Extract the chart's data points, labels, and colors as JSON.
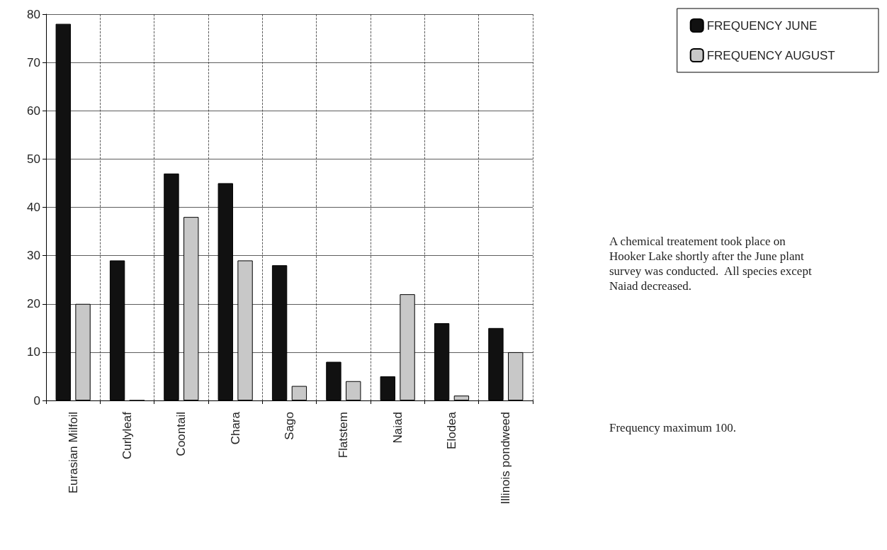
{
  "chart_data": {
    "type": "bar",
    "categories": [
      "Eurasian Milfoil",
      "Curlyleaf",
      "Coontail",
      "Chara",
      "Sago",
      "Flatstem",
      "Naiad",
      "Elodea",
      "Illinois pondweed"
    ],
    "series": [
      {
        "name": "FREQUENCY JUNE",
        "color": "#111111",
        "values": [
          78,
          29,
          47,
          45,
          28,
          8,
          5,
          16,
          15
        ]
      },
      {
        "name": "FREQUENCY AUGUST",
        "color": "#c8c8c8",
        "values": [
          20,
          0,
          38,
          29,
          3,
          4,
          22,
          1,
          10
        ]
      }
    ],
    "ylim": [
      0,
      80
    ],
    "yticks": [
      0,
      10,
      20,
      30,
      40,
      50,
      60,
      70,
      80
    ],
    "grid": true,
    "legend": "top right",
    "annotations": [
      "A chemical treatement took place on Hooker Lake shortly after the June plant survey was conducted.  All species except Naiad decreased.",
      "Frequency maximum 100."
    ]
  }
}
